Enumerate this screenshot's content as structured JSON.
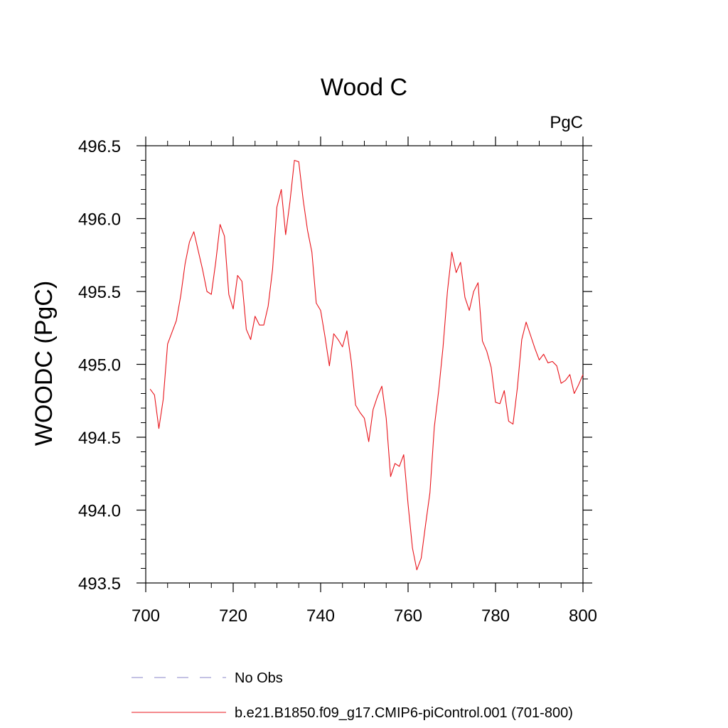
{
  "chart_data": {
    "type": "line",
    "title": "Wood C",
    "units_label": "PgC",
    "xlabel": "",
    "ylabel": "WOODC  (PgC)",
    "xlim": [
      700,
      800
    ],
    "ylim": [
      493.5,
      496.5
    ],
    "x_ticks": [
      "700",
      "720",
      "740",
      "760",
      "780",
      "800"
    ],
    "y_ticks": [
      "493.5",
      "494.0",
      "494.5",
      "495.0",
      "495.5",
      "496.0",
      "496.5"
    ],
    "grid": false,
    "legend_position": "bottom-left",
    "colors": {
      "series": "#e8141b",
      "obs": "#8a86c8"
    },
    "legend": [
      {
        "label": "No Obs",
        "style": "dashed"
      },
      {
        "label": "b.e21.B1850.f09_g17.CMIP6-piControl.001 (701-800)",
        "style": "solid"
      }
    ],
    "series": [
      {
        "x_start": 701,
        "values": [
          494.83,
          494.79,
          494.56,
          494.76,
          495.14,
          495.22,
          495.3,
          495.47,
          495.69,
          495.84,
          495.91,
          495.78,
          495.65,
          495.5,
          495.48,
          495.7,
          495.96,
          495.88,
          495.48,
          495.38,
          495.61,
          495.57,
          495.24,
          495.17,
          495.33,
          495.27,
          495.27,
          495.4,
          495.65,
          496.08,
          496.2,
          495.89,
          496.12,
          496.4,
          496.39,
          496.13,
          495.92,
          495.77,
          495.42,
          495.37,
          495.19,
          494.99,
          495.21,
          495.17,
          495.12,
          495.23,
          495.02,
          494.72,
          494.67,
          494.63,
          494.47,
          494.69,
          494.78,
          494.85,
          494.63,
          494.23,
          494.32,
          494.3,
          494.38,
          494.04,
          493.74,
          493.59,
          493.67,
          493.9,
          494.12,
          494.57,
          494.82,
          495.12,
          495.5,
          495.77,
          495.63,
          495.7,
          495.46,
          495.37,
          495.5,
          495.56,
          495.16,
          495.09,
          494.98,
          494.74,
          494.73,
          494.82,
          494.61,
          494.59,
          494.84,
          495.17,
          495.29,
          495.2,
          495.11,
          495.03,
          495.07,
          495.01,
          495.02,
          494.99,
          494.87,
          494.89,
          494.93,
          494.8,
          494.86,
          494.93
        ]
      }
    ]
  }
}
